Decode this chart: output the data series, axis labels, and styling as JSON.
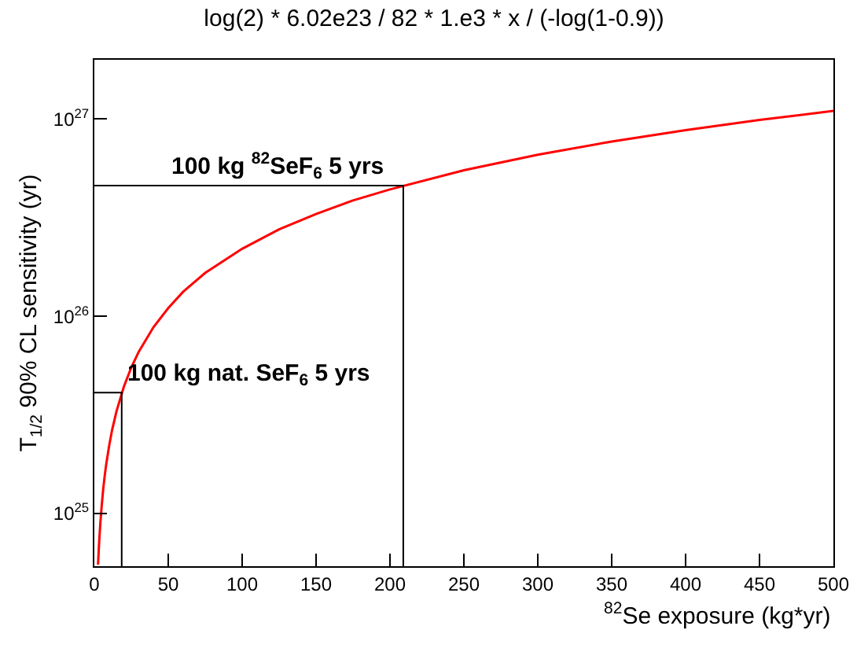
{
  "chart_data": {
    "type": "line",
    "title": "log(2) * 6.02e23 / 82 * 1.e3 * x / (-log(1-0.9))",
    "xlabel": "$^{82}$Se exposure (kg*yr)",
    "ylabel": "T$_{1/2}$ 90% CL sensitivity (yr)",
    "series": [
      {
        "color": "#ff0000",
        "x": [
          2.5,
          3,
          3.5,
          4,
          5,
          6,
          7,
          8,
          10,
          12,
          15,
          20,
          25,
          30,
          40,
          50,
          60,
          75,
          100,
          125,
          150,
          175,
          200,
          250,
          300,
          350,
          400,
          450,
          500
        ],
        "values": [
          5.5e+24,
          6.6e+24,
          7.7e+24,
          8.8e+24,
          1.1e+25,
          1.33e+25,
          1.55e+25,
          1.77e+25,
          2.2e+25,
          2.65e+25,
          3.3e+25,
          4.4e+25,
          5.5e+25,
          6.6e+25,
          8.8e+25,
          1.1e+26,
          1.33e+26,
          1.66e+26,
          2.2e+26,
          2.76e+26,
          3.3e+26,
          3.87e+26,
          4.4e+26,
          5.5e+26,
          6.6e+26,
          7.7e+26,
          8.8e+26,
          9.9e+26,
          1.1e+27
        ]
      },
      {
        "color": "#000000",
        "x": [
          0,
          209,
          209
        ],
        "values": [
          4.6e+26,
          4.6e+26,
          5.4e+24
        ]
      },
      {
        "color": "#000000",
        "x": [
          0,
          18.5,
          18.5
        ],
        "values": [
          4.1e+25,
          4.1e+25,
          5.4e+24
        ]
      }
    ],
    "annotations": [
      {
        "text": "100 kg $^{82}$SeF$_{6}$ 5 yrs",
        "x": 50,
        "y": 4.6e+26
      },
      {
        "text": "100 kg nat. SeF$_{6}$ 5 yrs",
        "x": 20,
        "y": 4.1e+25
      }
    ],
    "log": "y",
    "xlim": [
      0,
      500
    ],
    "xticks": [
      0,
      50,
      100,
      150,
      200,
      250,
      300,
      350,
      400,
      450,
      500
    ],
    "ylim": [
      5.4e+24,
      2e+27
    ],
    "yticks": [
      {
        "value": 1e+25,
        "label": "10$^{25}$"
      },
      {
        "value": 1e+26,
        "label": "10$^{26}$"
      },
      {
        "value": 1e+27,
        "label": "10$^{27}$"
      }
    ],
    "marker": "none",
    "line_style": "solid"
  }
}
